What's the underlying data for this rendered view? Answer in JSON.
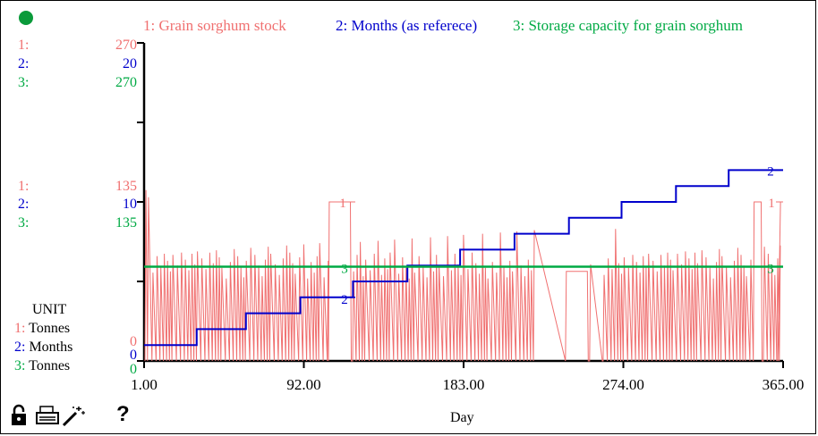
{
  "unit_panel": {
    "heading": "UNIT",
    "rows": [
      {
        "index": "1:",
        "unit": "Tonnes",
        "color": "#f07070"
      },
      {
        "index": "2:",
        "unit": "Months",
        "color": "#0000cc"
      },
      {
        "index": "3:",
        "unit": "Tonnes",
        "color": "#00aa44"
      }
    ]
  },
  "x_axis_label": "Day",
  "toolbar": {
    "lock": "lock-icon",
    "print": "printer-icon",
    "wand": "magic-wand-icon",
    "help_label": "?"
  },
  "chart_data": {
    "type": "line",
    "xlim": [
      1.0,
      365.0
    ],
    "x_ticks": [
      "1.00",
      "92.00",
      "183.00",
      "274.00",
      "365.00"
    ],
    "series": [
      {
        "id": "1",
        "name": "1: Grain sorghum stock",
        "color": "#f07070",
        "scale": {
          "min": "0",
          "mid": "135",
          "max": "270"
        },
        "ylim": [
          0,
          270
        ]
      },
      {
        "id": "2",
        "name": "2: Months (as referece)",
        "color": "#0000cc",
        "scale": {
          "min": "0",
          "mid": "10",
          "max": "20"
        },
        "ylim": [
          0,
          20
        ],
        "steps": [
          {
            "x0": 1,
            "x1": 31,
            "y": 1
          },
          {
            "x0": 31,
            "x1": 59,
            "y": 2
          },
          {
            "x0": 59,
            "x1": 90,
            "y": 3
          },
          {
            "x0": 90,
            "x1": 120,
            "y": 4
          },
          {
            "x0": 120,
            "x1": 151,
            "y": 5
          },
          {
            "x0": 151,
            "x1": 181,
            "y": 6
          },
          {
            "x0": 181,
            "x1": 212,
            "y": 7
          },
          {
            "x0": 212,
            "x1": 243,
            "y": 8
          },
          {
            "x0": 243,
            "x1": 273,
            "y": 9
          },
          {
            "x0": 273,
            "x1": 304,
            "y": 10
          },
          {
            "x0": 304,
            "x1": 334,
            "y": 11
          },
          {
            "x0": 334,
            "x1": 365,
            "y": 12
          }
        ]
      },
      {
        "id": "3",
        "name": "3: Storage capacity for grain sorghum",
        "color": "#00aa44",
        "scale": {
          "min": "0",
          "mid": "135",
          "max": "270"
        },
        "ylim": [
          0,
          270
        ],
        "constant": 80
      }
    ],
    "stock_plateaus": [
      {
        "x0": 106,
        "x1": 119,
        "y": 135
      },
      {
        "x0": 241,
        "x1": 254,
        "y": 76
      },
      {
        "x0": 348,
        "x1": 353,
        "y": 135
      }
    ],
    "stock_gaps": [
      {
        "x0": 224,
        "x1": 241
      },
      {
        "x0": 255,
        "x1": 262
      }
    ]
  }
}
